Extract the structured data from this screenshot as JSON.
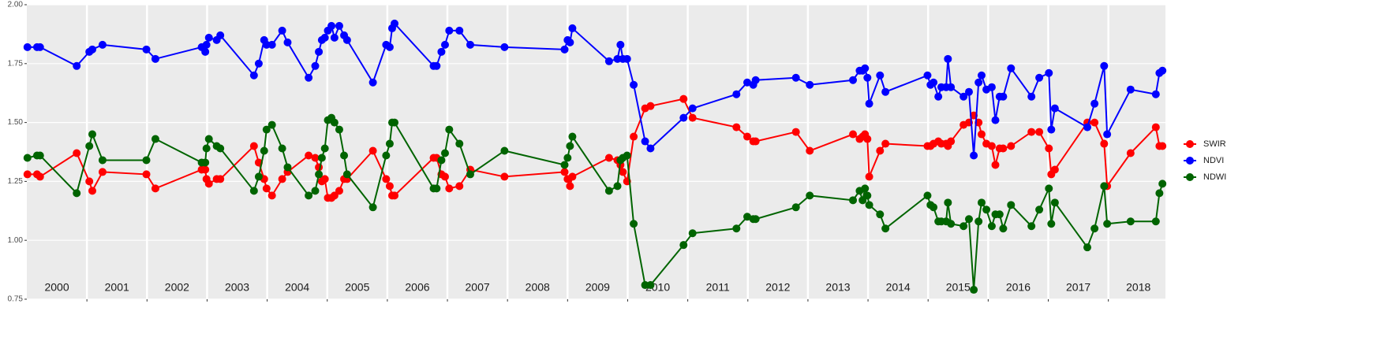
{
  "chart_data": {
    "type": "line",
    "x": [
      2000.01,
      2000.17,
      2000.22,
      2000.83,
      2001.04,
      2001.09,
      2001.26,
      2001.99,
      2002.14,
      2002.91,
      2002.97,
      2002.99,
      2003.03,
      2003.16,
      2003.22,
      2003.78,
      2003.86,
      2003.95,
      2003.99,
      2004.08,
      2004.25,
      2004.34,
      2004.69,
      2004.8,
      2004.86,
      2004.91,
      2004.96,
      2005.01,
      2005.07,
      2005.12,
      2005.2,
      2005.28,
      2005.33,
      2005.76,
      2005.98,
      2006.04,
      2006.08,
      2006.12,
      2006.77,
      2006.82,
      2006.9,
      2006.96,
      2007.03,
      2007.2,
      2007.38,
      2007.95,
      2008.95,
      2009.0,
      2009.04,
      2009.08,
      2009.69,
      2009.83,
      2009.88,
      2009.92,
      2009.99,
      2010.1,
      2010.29,
      2010.38,
      2010.93,
      2011.08,
      2011.81,
      2011.99,
      2012.09,
      2012.13,
      2012.8,
      2013.03,
      2013.75,
      2013.86,
      2013.91,
      2013.95,
      2013.99,
      2014.02,
      2014.2,
      2014.29,
      2014.99,
      2015.04,
      2015.09,
      2015.17,
      2015.22,
      2015.3,
      2015.33,
      2015.38,
      2015.59,
      2015.68,
      2015.76,
      2015.84,
      2015.89,
      2015.97,
      2016.06,
      2016.12,
      2016.19,
      2016.25,
      2016.38,
      2016.72,
      2016.85,
      2017.01,
      2017.05,
      2017.11,
      2017.65,
      2017.77,
      2017.93,
      2017.98,
      2018.37,
      2018.79,
      2018.85,
      2018.9
    ],
    "series": [
      {
        "name": "SWIR",
        "color": "#ff0000",
        "values": [
          1.28,
          1.28,
          1.27,
          1.37,
          1.25,
          1.21,
          1.29,
          1.28,
          1.22,
          1.3,
          1.3,
          1.26,
          1.24,
          1.26,
          1.26,
          1.4,
          1.33,
          1.26,
          1.22,
          1.19,
          1.26,
          1.29,
          1.36,
          1.35,
          1.31,
          1.25,
          1.26,
          1.18,
          1.18,
          1.19,
          1.21,
          1.26,
          1.26,
          1.38,
          1.26,
          1.23,
          1.19,
          1.19,
          1.35,
          1.35,
          1.28,
          1.27,
          1.22,
          1.23,
          1.3,
          1.27,
          1.29,
          1.26,
          1.23,
          1.27,
          1.35,
          1.34,
          1.32,
          1.29,
          1.25,
          1.44,
          1.56,
          1.57,
          1.6,
          1.52,
          1.48,
          1.44,
          1.42,
          1.42,
          1.46,
          1.38,
          1.45,
          1.43,
          1.44,
          1.45,
          1.43,
          1.27,
          1.38,
          1.41,
          1.4,
          1.4,
          1.41,
          1.42,
          1.41,
          1.41,
          1.4,
          1.42,
          1.49,
          1.5,
          1.53,
          1.5,
          1.45,
          1.41,
          1.4,
          1.32,
          1.39,
          1.39,
          1.4,
          1.46,
          1.46,
          1.39,
          1.28,
          1.3,
          1.5,
          1.5,
          1.41,
          1.23,
          1.37,
          1.48,
          1.4,
          1.4
        ]
      },
      {
        "name": "NDVI",
        "color": "#0000ff",
        "values": [
          1.82,
          1.82,
          1.82,
          1.74,
          1.8,
          1.81,
          1.83,
          1.81,
          1.77,
          1.82,
          1.8,
          1.83,
          1.86,
          1.85,
          1.87,
          1.7,
          1.75,
          1.85,
          1.83,
          1.83,
          1.89,
          1.84,
          1.69,
          1.74,
          1.8,
          1.85,
          1.86,
          1.89,
          1.91,
          1.86,
          1.91,
          1.87,
          1.85,
          1.67,
          1.83,
          1.82,
          1.9,
          1.92,
          1.74,
          1.74,
          1.8,
          1.83,
          1.89,
          1.89,
          1.83,
          1.82,
          1.81,
          1.85,
          1.84,
          1.9,
          1.76,
          1.77,
          1.83,
          1.77,
          1.77,
          1.66,
          1.42,
          1.39,
          1.52,
          1.56,
          1.62,
          1.67,
          1.66,
          1.68,
          1.69,
          1.66,
          1.68,
          1.72,
          1.72,
          1.73,
          1.69,
          1.58,
          1.7,
          1.63,
          1.7,
          1.66,
          1.67,
          1.61,
          1.65,
          1.65,
          1.77,
          1.65,
          1.61,
          1.63,
          1.36,
          1.67,
          1.7,
          1.64,
          1.65,
          1.51,
          1.61,
          1.61,
          1.73,
          1.61,
          1.69,
          1.71,
          1.47,
          1.56,
          1.48,
          1.58,
          1.74,
          1.45,
          1.64,
          1.62,
          1.71,
          1.72
        ]
      },
      {
        "name": "NDWI",
        "color": "#006400",
        "values": [
          1.35,
          1.36,
          1.36,
          1.2,
          1.4,
          1.45,
          1.34,
          1.34,
          1.43,
          1.33,
          1.33,
          1.39,
          1.43,
          1.4,
          1.39,
          1.21,
          1.27,
          1.38,
          1.47,
          1.49,
          1.39,
          1.31,
          1.19,
          1.21,
          1.28,
          1.35,
          1.39,
          1.51,
          1.52,
          1.5,
          1.47,
          1.36,
          1.28,
          1.14,
          1.36,
          1.41,
          1.5,
          1.5,
          1.22,
          1.22,
          1.34,
          1.37,
          1.47,
          1.41,
          1.28,
          1.38,
          1.32,
          1.35,
          1.4,
          1.44,
          1.21,
          1.23,
          1.34,
          1.35,
          1.36,
          1.07,
          0.81,
          0.81,
          0.98,
          1.03,
          1.05,
          1.1,
          1.09,
          1.09,
          1.14,
          1.19,
          1.17,
          1.21,
          1.17,
          1.22,
          1.19,
          1.15,
          1.11,
          1.05,
          1.19,
          1.15,
          1.14,
          1.08,
          1.08,
          1.08,
          1.16,
          1.07,
          1.06,
          1.09,
          0.79,
          1.08,
          1.16,
          1.13,
          1.06,
          1.11,
          1.11,
          1.05,
          1.15,
          1.06,
          1.13,
          1.22,
          1.07,
          1.16,
          0.97,
          1.05,
          1.23,
          1.07,
          1.08,
          1.08,
          1.2,
          1.24
        ]
      }
    ],
    "xlim": [
      2000,
      2018.95
    ],
    "xticks": [
      2001,
      2002,
      2003,
      2004,
      2005,
      2006,
      2007,
      2008,
      2009,
      2010,
      2011,
      2012,
      2013,
      2014,
      2015,
      2016,
      2017,
      2018
    ],
    "x_labels": [
      2000,
      2001,
      2002,
      2003,
      2004,
      2005,
      2006,
      2007,
      2008,
      2009,
      2010,
      2011,
      2012,
      2013,
      2014,
      2015,
      2016,
      2017,
      2018
    ],
    "ylim": [
      0.75,
      2.0
    ],
    "yticks": [
      0.75,
      {
        "value": 1,
        "label": "1.00"
      },
      1.25,
      {
        "value": 1.5,
        "label": "1.50"
      },
      1.75,
      {
        "value": 2,
        "label": "2.00"
      }
    ],
    "grid": true,
    "legend": "right"
  }
}
